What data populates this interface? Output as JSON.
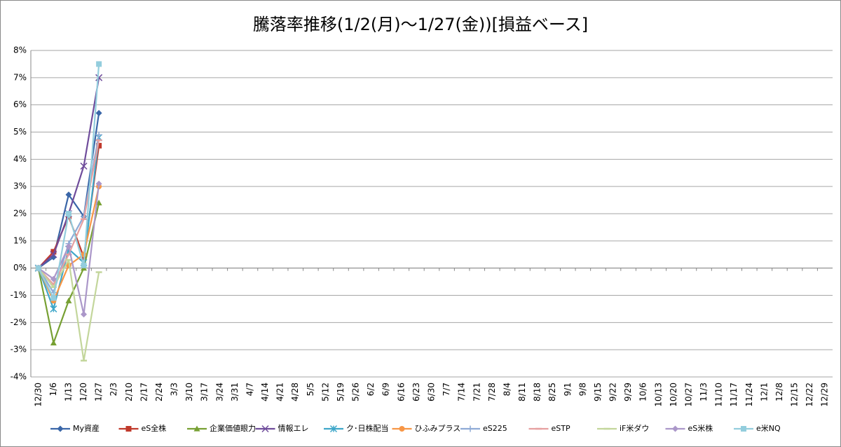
{
  "chart_data": {
    "type": "line",
    "title": "騰落率推移(1/2(月)～1/27(金))[損益ベース]",
    "categories": [
      "12/30",
      "1/6",
      "1/13",
      "1/20",
      "1/27",
      "2/3",
      "2/10",
      "2/17",
      "2/24",
      "3/3",
      "3/10",
      "3/17",
      "3/24",
      "3/31",
      "4/7",
      "4/14",
      "4/21",
      "4/28",
      "5/5",
      "5/12",
      "5/19",
      "5/26",
      "6/2",
      "6/9",
      "6/16",
      "6/23",
      "6/30",
      "7/7",
      "7/14",
      "7/21",
      "7/28",
      "8/4",
      "8/11",
      "8/18",
      "8/25",
      "9/1",
      "9/8",
      "9/15",
      "9/22",
      "9/29",
      "10/6",
      "10/13",
      "10/20",
      "10/27",
      "11/3",
      "11/10",
      "11/17",
      "11/24",
      "12/1",
      "12/8",
      "12/15",
      "12/22",
      "12/29"
    ],
    "ylim": [
      -4,
      8
    ],
    "yticks": [
      {
        "value": -4,
        "label": "-4%"
      },
      {
        "value": -3,
        "label": "-3%"
      },
      {
        "value": -2,
        "label": "-2%"
      },
      {
        "value": -1,
        "label": "-1%"
      },
      {
        "value": 0,
        "label": "0%"
      },
      {
        "value": 1,
        "label": "1%"
      },
      {
        "value": 2,
        "label": "2%"
      },
      {
        "value": 3,
        "label": "3%"
      },
      {
        "value": 4,
        "label": "4%"
      },
      {
        "value": 5,
        "label": "5%"
      },
      {
        "value": 6,
        "label": "6%"
      },
      {
        "value": 7,
        "label": "7%"
      },
      {
        "value": 8,
        "label": "8%"
      }
    ],
    "grid": true,
    "legend": "bottom",
    "series": [
      {
        "name": "My資産",
        "color": "#3a66a8",
        "marker": "diamond",
        "values": [
          0,
          0.4,
          2.7,
          1.9,
          5.7,
          null,
          null,
          null,
          null,
          null,
          null,
          null,
          null,
          null,
          null,
          null,
          null,
          null,
          null,
          null,
          null,
          null,
          null,
          null,
          null,
          null,
          null,
          null,
          null,
          null,
          null,
          null,
          null,
          null,
          null,
          null,
          null,
          null,
          null,
          null,
          null,
          null,
          null,
          null,
          null,
          null,
          null,
          null,
          null,
          null,
          null,
          null,
          null
        ]
      },
      {
        "name": "eS全株",
        "color": "#c0392b",
        "marker": "square",
        "values": [
          0,
          0.6,
          1.9,
          0.4,
          4.5,
          null,
          null,
          null,
          null,
          null,
          null,
          null,
          null,
          null,
          null,
          null,
          null,
          null,
          null,
          null,
          null,
          null,
          null,
          null,
          null,
          null,
          null,
          null,
          null,
          null,
          null,
          null,
          null,
          null,
          null,
          null,
          null,
          null,
          null,
          null,
          null,
          null,
          null,
          null,
          null,
          null,
          null,
          null,
          null,
          null,
          null,
          null,
          null
        ]
      },
      {
        "name": "企業価値眼力",
        "color": "#77a033",
        "marker": "triangle",
        "values": [
          0,
          -2.75,
          -1.2,
          0,
          2.4,
          null,
          null,
          null,
          null,
          null,
          null,
          null,
          null,
          null,
          null,
          null,
          null,
          null,
          null,
          null,
          null,
          null,
          null,
          null,
          null,
          null,
          null,
          null,
          null,
          null,
          null,
          null,
          null,
          null,
          null,
          null,
          null,
          null,
          null,
          null,
          null,
          null,
          null,
          null,
          null,
          null,
          null,
          null,
          null,
          null,
          null,
          null,
          null
        ]
      },
      {
        "name": "情報エレ",
        "color": "#6f4c9b",
        "marker": "x",
        "values": [
          0,
          0.5,
          2.0,
          3.75,
          7.0,
          null,
          null,
          null,
          null,
          null,
          null,
          null,
          null,
          null,
          null,
          null,
          null,
          null,
          null,
          null,
          null,
          null,
          null,
          null,
          null,
          null,
          null,
          null,
          null,
          null,
          null,
          null,
          null,
          null,
          null,
          null,
          null,
          null,
          null,
          null,
          null,
          null,
          null,
          null,
          null,
          null,
          null,
          null,
          null,
          null,
          null,
          null,
          null
        ]
      },
      {
        "name": "ク･日株配当",
        "color": "#3fa7c9",
        "marker": "star",
        "values": [
          0,
          -1.5,
          0.7,
          0.2,
          4.8,
          null,
          null,
          null,
          null,
          null,
          null,
          null,
          null,
          null,
          null,
          null,
          null,
          null,
          null,
          null,
          null,
          null,
          null,
          null,
          null,
          null,
          null,
          null,
          null,
          null,
          null,
          null,
          null,
          null,
          null,
          null,
          null,
          null,
          null,
          null,
          null,
          null,
          null,
          null,
          null,
          null,
          null,
          null,
          null,
          null,
          null,
          null,
          null
        ]
      },
      {
        "name": "ひふみプラス",
        "color": "#f79646",
        "marker": "circle",
        "values": [
          0,
          -1.2,
          0.1,
          0.5,
          3.0,
          null,
          null,
          null,
          null,
          null,
          null,
          null,
          null,
          null,
          null,
          null,
          null,
          null,
          null,
          null,
          null,
          null,
          null,
          null,
          null,
          null,
          null,
          null,
          null,
          null,
          null,
          null,
          null,
          null,
          null,
          null,
          null,
          null,
          null,
          null,
          null,
          null,
          null,
          null,
          null,
          null,
          null,
          null,
          null,
          null,
          null,
          null,
          null
        ]
      },
      {
        "name": "eS225",
        "color": "#8eaad6",
        "marker": "plus",
        "values": [
          0,
          -0.9,
          0.9,
          1.9,
          4.9,
          null,
          null,
          null,
          null,
          null,
          null,
          null,
          null,
          null,
          null,
          null,
          null,
          null,
          null,
          null,
          null,
          null,
          null,
          null,
          null,
          null,
          null,
          null,
          null,
          null,
          null,
          null,
          null,
          null,
          null,
          null,
          null,
          null,
          null,
          null,
          null,
          null,
          null,
          null,
          null,
          null,
          null,
          null,
          null,
          null,
          null,
          null,
          null
        ]
      },
      {
        "name": "eSTP",
        "color": "#e6a0a0",
        "marker": "dash",
        "values": [
          0,
          -0.6,
          0.5,
          1.8,
          4.7,
          null,
          null,
          null,
          null,
          null,
          null,
          null,
          null,
          null,
          null,
          null,
          null,
          null,
          null,
          null,
          null,
          null,
          null,
          null,
          null,
          null,
          null,
          null,
          null,
          null,
          null,
          null,
          null,
          null,
          null,
          null,
          null,
          null,
          null,
          null,
          null,
          null,
          null,
          null,
          null,
          null,
          null,
          null,
          null,
          null,
          null,
          null,
          null
        ]
      },
      {
        "name": "iF米ダウ",
        "color": "#c3d69b",
        "marker": "dash",
        "values": [
          0,
          -0.7,
          0.3,
          -3.4,
          -0.15,
          null,
          null,
          null,
          null,
          null,
          null,
          null,
          null,
          null,
          null,
          null,
          null,
          null,
          null,
          null,
          null,
          null,
          null,
          null,
          null,
          null,
          null,
          null,
          null,
          null,
          null,
          null,
          null,
          null,
          null,
          null,
          null,
          null,
          null,
          null,
          null,
          null,
          null,
          null,
          null,
          null,
          null,
          null,
          null,
          null,
          null,
          null,
          null
        ]
      },
      {
        "name": "eS米株",
        "color": "#ab97c9",
        "marker": "diamond",
        "values": [
          0,
          -0.4,
          0.8,
          -1.7,
          3.1,
          null,
          null,
          null,
          null,
          null,
          null,
          null,
          null,
          null,
          null,
          null,
          null,
          null,
          null,
          null,
          null,
          null,
          null,
          null,
          null,
          null,
          null,
          null,
          null,
          null,
          null,
          null,
          null,
          null,
          null,
          null,
          null,
          null,
          null,
          null,
          null,
          null,
          null,
          null,
          null,
          null,
          null,
          null,
          null,
          null,
          null,
          null,
          null
        ]
      },
      {
        "name": "e米NQ",
        "color": "#93cddd",
        "marker": "square",
        "values": [
          0,
          -1.1,
          2.0,
          0.1,
          7.5,
          null,
          null,
          null,
          null,
          null,
          null,
          null,
          null,
          null,
          null,
          null,
          null,
          null,
          null,
          null,
          null,
          null,
          null,
          null,
          null,
          null,
          null,
          null,
          null,
          null,
          null,
          null,
          null,
          null,
          null,
          null,
          null,
          null,
          null,
          null,
          null,
          null,
          null,
          null,
          null,
          null,
          null,
          null,
          null,
          null,
          null,
          null,
          null
        ]
      }
    ]
  }
}
